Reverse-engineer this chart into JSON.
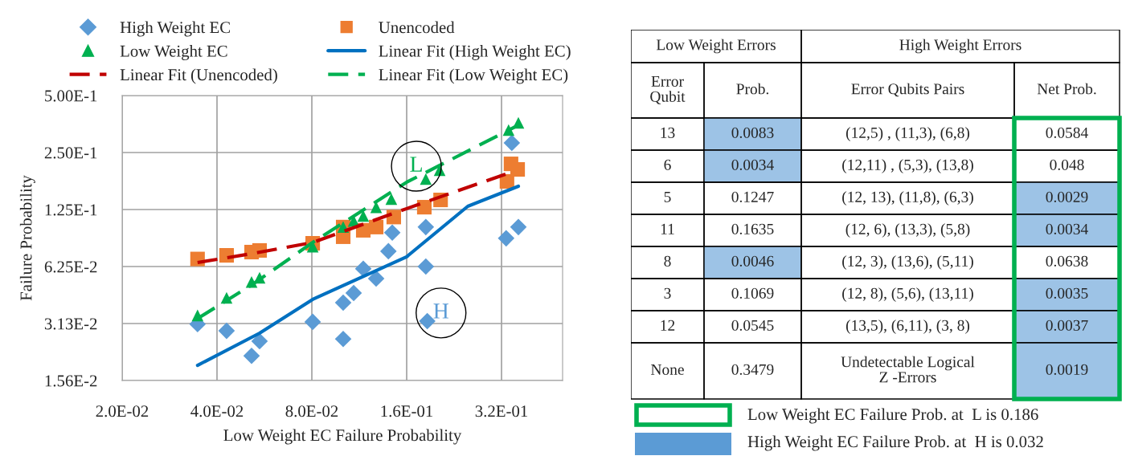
{
  "chart_data": [
    {
      "type": "scatter",
      "xlabel": "Low Weight EC Failure Probability",
      "ylabel": "Failure Probability",
      "log": "xy",
      "grid": true,
      "legend": "top",
      "xlim": [
        0.02,
        0.5
      ],
      "xticks": [
        {
          "value": 0.02,
          "label": "2.0E-02"
        },
        {
          "value": 0.04,
          "label": "4.0E-02"
        },
        {
          "value": 0.08,
          "label": "8.0E-02"
        },
        {
          "value": 0.16,
          "label": "1.6E-01"
        },
        {
          "value": 0.32,
          "label": "3.2E-01"
        }
      ],
      "ylim": [
        0.015625,
        0.5
      ],
      "yticks": [
        {
          "value": 0.015625,
          "label": "1.56E-2"
        },
        {
          "value": 0.03125,
          "label": "3.13E-2"
        },
        {
          "value": 0.0625,
          "label": "6.25E-2"
        },
        {
          "value": 0.125,
          "label": "1.25E-1"
        },
        {
          "value": 0.25,
          "label": "2.50E-1"
        },
        {
          "value": 0.5,
          "label": "5.00E-1"
        }
      ],
      "series": [
        {
          "name": "High Weight EC",
          "type": "scatter",
          "marker": "diamond",
          "color": "#5b9bd5",
          "x": [
            0.0347,
            0.0429,
            0.0515,
            0.0546,
            0.0805,
            0.1006,
            0.1006,
            0.1086,
            0.1165,
            0.128,
            0.14,
            0.144,
            0.184,
            0.184,
            0.186,
            0.331,
            0.345,
            0.362
          ],
          "values": [
            0.031,
            0.0286,
            0.0211,
            0.0252,
            0.0319,
            0.0403,
            0.0259,
            0.0453,
            0.0608,
            0.054,
            0.0753,
            0.0944,
            0.101,
            0.0625,
            0.0322,
            0.0881,
            0.2812,
            0.101
          ]
        },
        {
          "name": "Unencoded",
          "type": "scatter",
          "marker": "square",
          "color": "#ed7d31",
          "x": [
            0.0347,
            0.0429,
            0.0515,
            0.0546,
            0.0805,
            0.1006,
            0.1006,
            0.1165,
            0.128,
            0.1456,
            0.182,
            0.205,
            0.333,
            0.343,
            0.36
          ],
          "values": [
            0.0685,
            0.0716,
            0.0745,
            0.076,
            0.0829,
            0.101,
            0.0898,
            0.0971,
            0.101,
            0.1141,
            0.1286,
            0.1405,
            0.176,
            0.2178,
            0.2036
          ]
        },
        {
          "name": "Low Weight EC",
          "type": "scatter",
          "marker": "triangle",
          "color": "#00b050",
          "x": [
            0.0347,
            0.0429,
            0.0515,
            0.0546,
            0.0805,
            0.1006,
            0.1086,
            0.1165,
            0.128,
            0.143,
            0.184,
            0.2036,
            0.337,
            0.362
          ],
          "values": [
            0.0345,
            0.0427,
            0.0518,
            0.0545,
            0.0797,
            0.101,
            0.1087,
            0.1156,
            0.1286,
            0.1418,
            0.1812,
            0.2017,
            0.3287,
            0.3585
          ]
        },
        {
          "name": "Linear Fit (High Weight EC)",
          "type": "line",
          "marker": "none",
          "line_style": "solid",
          "color": "#0070c0",
          "x": [
            0.0347,
            0.0546,
            0.0805,
            0.16,
            0.25,
            0.362
          ],
          "values": [
            0.0188,
            0.0278,
            0.0419,
            0.0704,
            0.13,
            0.166
          ]
        },
        {
          "name": "Linear Fit (Unencoded)",
          "type": "line",
          "marker": "none",
          "line_style": "dashed",
          "color": "#c00000",
          "x": [
            0.0347,
            0.0515,
            0.0805,
            0.16,
            0.352
          ],
          "values": [
            0.0656,
            0.0731,
            0.0837,
            0.1264,
            0.1997
          ]
        },
        {
          "name": "Linear Fit (Low Weight EC)",
          "type": "line",
          "marker": "none",
          "line_style": "dashed",
          "color": "#00b050",
          "x": [
            0.0347,
            0.0515,
            0.0805,
            0.16,
            0.366
          ],
          "values": [
            0.0332,
            0.0499,
            0.0837,
            0.1743,
            0.352
          ]
        }
      ],
      "annotations": [
        "L",
        "H"
      ]
    },
    {
      "type": "other",
      "color": "#00b050",
      "categories": [
        "Error\nQubit",
        "Prob.",
        "Error Qubits Pairs",
        "Net Prob."
      ],
      "cell_labels": [
        [
          "13",
          "0.0083",
          "(12,5) , (11,3), (6,8)",
          "0.0584"
        ],
        [
          "6",
          "0.0034",
          "(12,11) , (5,3), (13,8)",
          "0.048"
        ],
        [
          "5",
          "0.1247",
          "(12, 13), (11,8), (6,3)",
          "0.0029"
        ],
        [
          "11",
          "0.1635",
          "(12, 6), (13,3), (5,8)",
          "0.0034"
        ],
        [
          "8",
          "0.0046",
          "(12, 3), (13,6), (5,11)",
          "0.0638"
        ],
        [
          "3",
          "0.1069",
          "(12, 8), (5,6), (13,11)",
          "0.0035"
        ],
        [
          "12",
          "0.0545",
          "(13,5), (6,11), (3, 8)",
          "0.0037"
        ],
        [
          "None",
          "0.3479",
          "Undetectable Logical\nZ -Errors",
          "0.0019"
        ]
      ],
      "colors": [
        [
          null,
          "#9dc3e6",
          null,
          null
        ],
        [
          null,
          "#9dc3e6",
          null,
          null
        ],
        [
          null,
          null,
          null,
          "#9dc3e6"
        ],
        [
          null,
          null,
          null,
          "#9dc3e6"
        ],
        [
          null,
          "#9dc3e6",
          null,
          null
        ],
        [
          null,
          null,
          null,
          "#9dc3e6"
        ],
        [
          null,
          null,
          null,
          "#9dc3e6"
        ],
        [
          null,
          null,
          null,
          "#9dc3e6"
        ]
      ],
      "annotations": [
        "Low Weight Errors",
        "High Weight Errors",
        "Low Weight EC Failure Prob. at  L is 0.186",
        "High Weight EC Failure Prob. at  H is 0.032"
      ]
    }
  ]
}
